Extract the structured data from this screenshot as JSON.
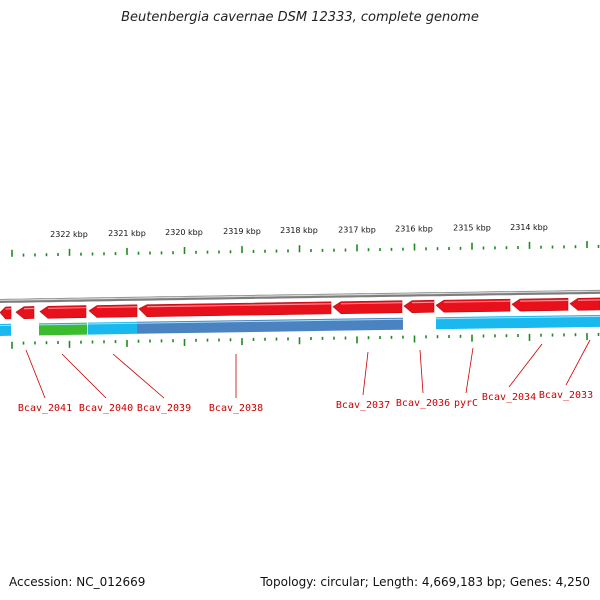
{
  "title": "Beutenbergia cavernae DSM 12333, complete genome",
  "footer": {
    "accession": "Accession: NC_012669",
    "stats": "Topology: circular; Length: 4,669,183 bp; Genes: 4,250"
  },
  "colors": {
    "forward_gene": "#e8101a",
    "reverse_gene": "#19b9ef",
    "reverse_gene_dark": "#4b82c0",
    "rna_gene": "#3cbb2e",
    "backbone": "#7d7d7d",
    "tick": "#1f8a1f",
    "label": "#cc0000"
  },
  "scale_labels": [
    "2322 kbp",
    "2321 kbp",
    "2320 kbp",
    "2319 kbp",
    "2318 kbp",
    "2317 kbp",
    "2316 kbp",
    "2315 kbp",
    "2314 kbp"
  ],
  "gene_labels": [
    "Bcav_2041",
    "Bcav_2040",
    "Bcav_2039",
    "Bcav_2038",
    "Bcav_2037",
    "Bcav_2036",
    "pyrC",
    "Bcav_2034",
    "Bcav_2033"
  ]
}
